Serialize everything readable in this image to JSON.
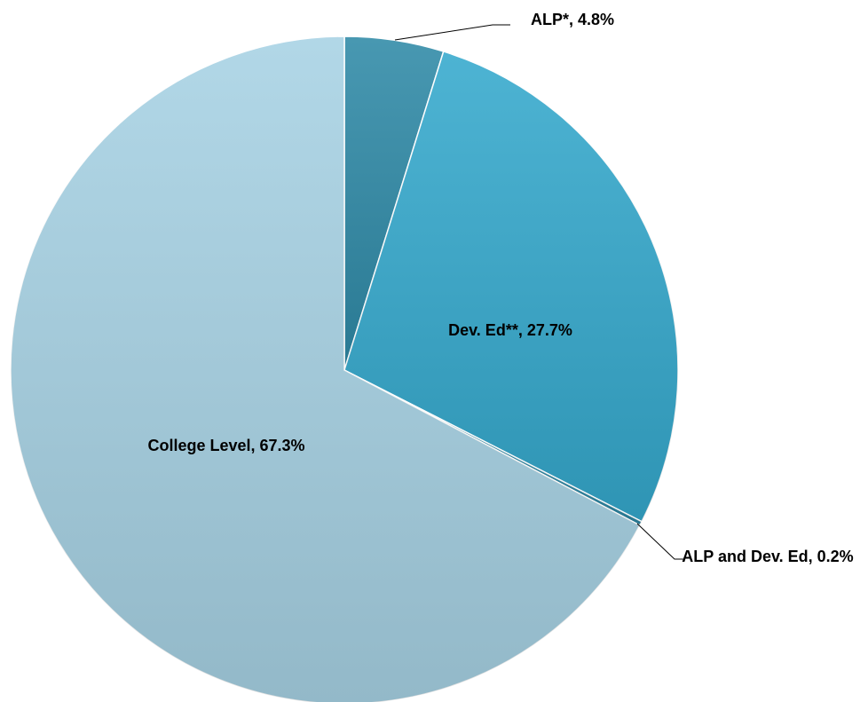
{
  "chart_data": {
    "type": "pie",
    "values": [
      4.8,
      27.7,
      0.2,
      67.3
    ],
    "value_labels": [
      "ALP*, 4.8%",
      "Dev. Ed**, 27.7%",
      "ALP and Dev. Ed, 0.2%",
      "College Level, 67.3%"
    ],
    "colors": [
      "#2f8aa7",
      "#35a9cd",
      "#2c86a3",
      "#a7d2e4"
    ]
  }
}
